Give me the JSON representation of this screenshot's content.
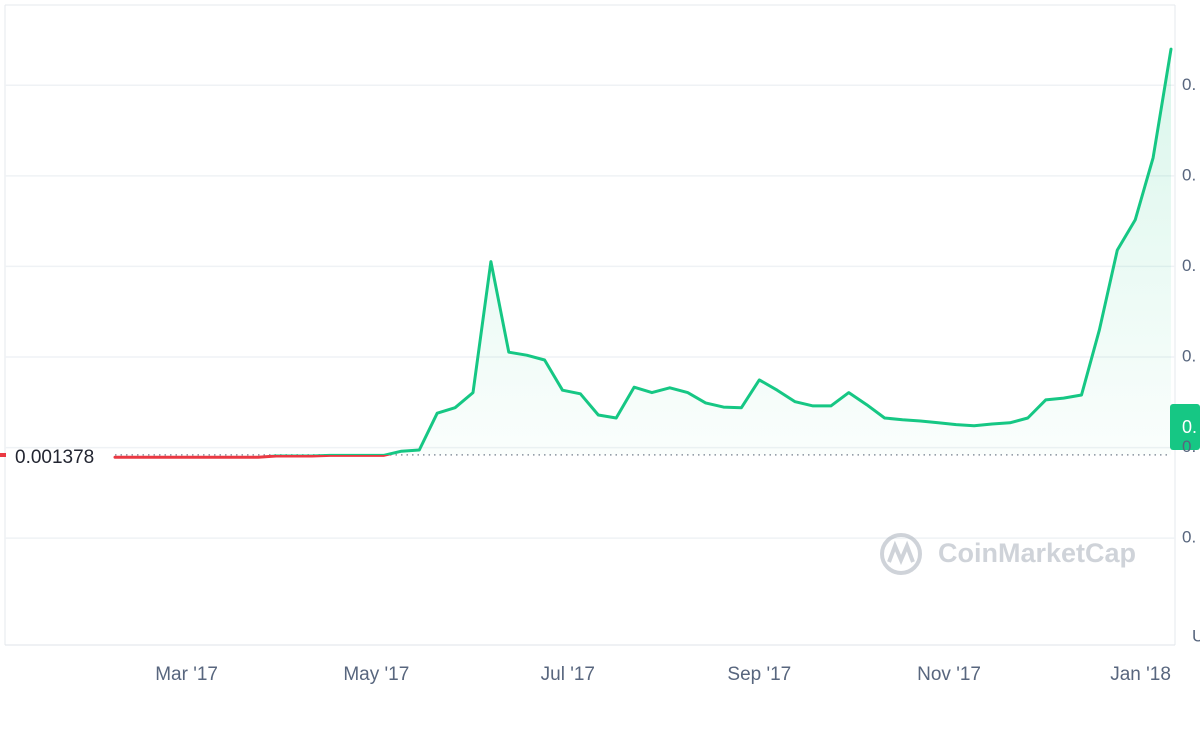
{
  "chart_data": {
    "type": "line",
    "values": [
      0.00134,
      0.00134,
      0.00134,
      0.00134,
      0.00134,
      0.00134,
      0.00134,
      0.00134,
      0.00134,
      0.00136,
      0.00136,
      0.00136,
      0.00137,
      0.00137,
      0.00137,
      0.00137,
      0.00144,
      0.00146,
      0.00207,
      0.00216,
      0.00241,
      0.00458,
      0.00308,
      0.00303,
      0.00295,
      0.00245,
      0.00239,
      0.00204,
      0.00199,
      0.0025,
      0.00241,
      0.00249,
      0.00241,
      0.00224,
      0.00217,
      0.00216,
      0.00262,
      0.00245,
      0.00226,
      0.00219,
      0.00219,
      0.00241,
      0.00221,
      0.00199,
      0.00196,
      0.00194,
      0.00191,
      0.00188,
      0.00186,
      0.00189,
      0.00191,
      0.00199,
      0.00229,
      0.00232,
      0.00237,
      0.00345,
      0.00477,
      0.00527,
      0.0063,
      0.0081
    ],
    "color_above": "#16c784",
    "color_below": "#ea3943",
    "baseline": 0.001378,
    "xlim": [
      0,
      59
    ],
    "xticks": [
      {
        "value": 4,
        "label": "Mar '17"
      },
      {
        "value": 14.6,
        "label": "May '17"
      },
      {
        "value": 25.3,
        "label": "Jul '17"
      },
      {
        "value": 36,
        "label": "Sep '17"
      },
      {
        "value": 46.6,
        "label": "Nov '17"
      },
      {
        "value": 57.3,
        "label": "Jan '18"
      }
    ],
    "ylim": [
      -0.00177,
      0.00883
    ],
    "yticks": [
      {
        "value": 0,
        "label": "0."
      },
      {
        "value": 0.0015,
        "label": "0."
      },
      {
        "value": 0.003,
        "label": "0."
      },
      {
        "value": 0.0045,
        "label": "0."
      },
      {
        "value": 0.006,
        "label": "0."
      },
      {
        "value": 0.0075,
        "label": "0."
      }
    ],
    "current_label": "0.",
    "watermark": "CoinMarketCap",
    "corner_text": "U",
    "grid": true
  }
}
